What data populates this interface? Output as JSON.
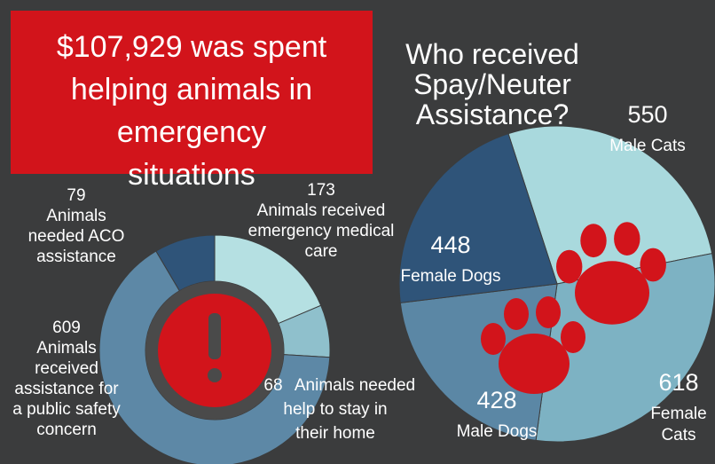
{
  "headline": "$107,929 was spent helping animals in emergency situations",
  "chart_data": [
    {
      "type": "donut",
      "categories": [
        "Animals needed ACO assistance",
        "Animals received emergency medical care",
        "Animals needed help to stay in their home",
        "Animals received assistance for a public safety concern"
      ],
      "values": [
        79,
        173,
        68,
        609
      ],
      "colors": [
        "#2f5479",
        "#b5e0e2",
        "#8fc0cc",
        "#5d88a6"
      ]
    },
    {
      "type": "pie",
      "title": "Who received Spay/Neuter Assistance?",
      "categories": [
        "Male Cats",
        "Female Cats",
        "Male Dogs",
        "Female Dogs"
      ],
      "values": [
        550,
        618,
        428,
        448
      ],
      "colors": [
        "#a9d9dd",
        "#7db2c3",
        "#5b87a5",
        "#2f5479"
      ]
    }
  ]
}
